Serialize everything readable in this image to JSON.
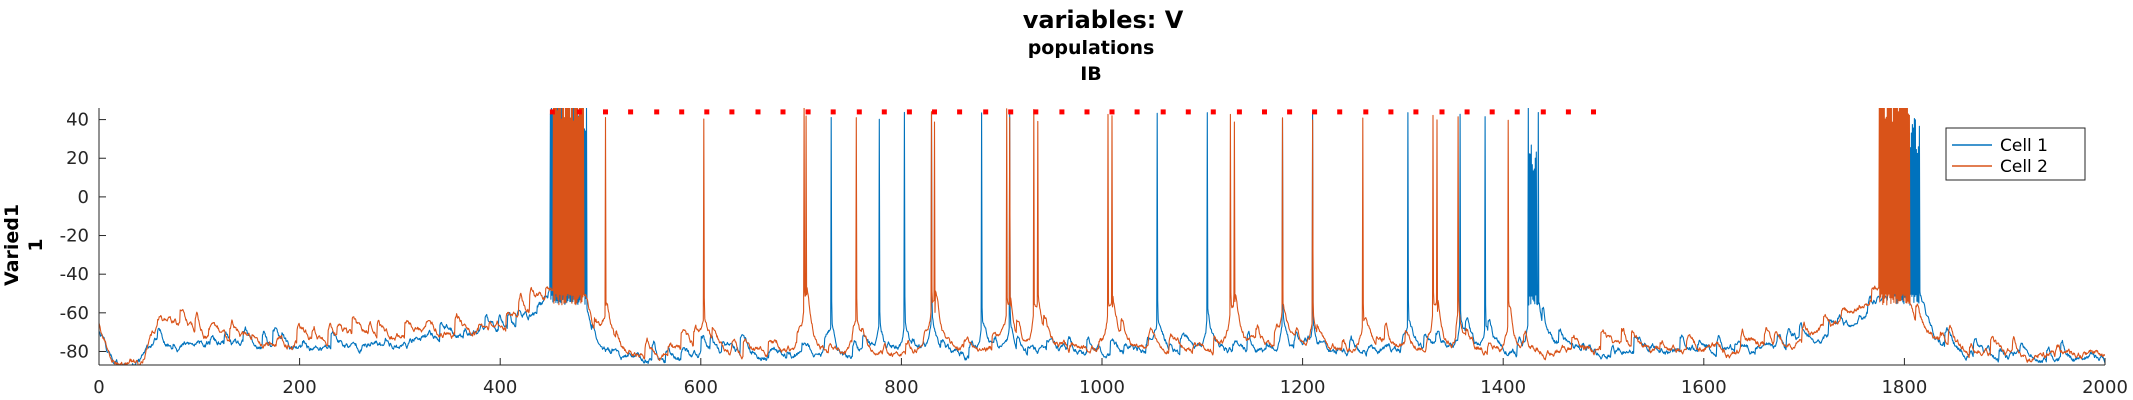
{
  "chart_data": {
    "type": "line",
    "title": "variables: V",
    "subtitle_lines": [
      "populations",
      "IB"
    ],
    "ylabel_lines": [
      "Varied1",
      "1"
    ],
    "xlabel": "",
    "xlim": [
      0,
      2000
    ],
    "ylim": [
      -87,
      46
    ],
    "xticks": [
      0,
      200,
      400,
      600,
      800,
      1000,
      1200,
      1400,
      1600,
      1800,
      2000
    ],
    "yticks": [
      -80,
      -60,
      -40,
      -20,
      0,
      20,
      40
    ],
    "grid": false,
    "legend_position": "top-right",
    "colors": {
      "cell1": "#0072BD",
      "cell2": "#D95319",
      "markers": "#FF0000",
      "axis": "#262626"
    },
    "series": [
      {
        "name": "Cell 1",
        "baseline": [
          [
            0,
            -70
          ],
          [
            10,
            -82
          ],
          [
            20,
            -87
          ],
          [
            40,
            -87
          ],
          [
            55,
            -75
          ],
          [
            100,
            -78
          ],
          [
            200,
            -80
          ],
          [
            300,
            -76
          ],
          [
            380,
            -70
          ],
          [
            420,
            -66
          ],
          [
            445,
            -57
          ],
          [
            450,
            -56
          ],
          [
            485,
            -56
          ],
          [
            495,
            -75
          ],
          [
            520,
            -85
          ],
          [
            600,
            -83
          ],
          [
            800,
            -82
          ],
          [
            1000,
            -81
          ],
          [
            1200,
            -80
          ],
          [
            1400,
            -79
          ],
          [
            1500,
            -80
          ],
          [
            1600,
            -81
          ],
          [
            1700,
            -77
          ],
          [
            1750,
            -65
          ],
          [
            1775,
            -53
          ],
          [
            1815,
            -53
          ],
          [
            1830,
            -75
          ],
          [
            1870,
            -82
          ],
          [
            1950,
            -83
          ],
          [
            2000,
            -84
          ]
        ],
        "bursts": [
          [
            450,
            486,
            22,
            30
          ],
          [
            1789,
            1815,
            12,
            30
          ],
          [
            1426,
            1433,
            4,
            30
          ]
        ],
        "spikes": [
          454,
          730,
          778,
          803,
          830,
          880,
          908,
          1055,
          1105,
          1180,
          1210,
          1305,
          1357,
          1382,
          1425,
          1430,
          1435
        ],
        "spike_peak": 44
      },
      {
        "name": "Cell 2",
        "baseline": [
          [
            0,
            -65
          ],
          [
            10,
            -78
          ],
          [
            20,
            -85
          ],
          [
            40,
            -86
          ],
          [
            55,
            -70
          ],
          [
            70,
            -64
          ],
          [
            100,
            -72
          ],
          [
            200,
            -75
          ],
          [
            300,
            -72
          ],
          [
            380,
            -68
          ],
          [
            420,
            -65
          ],
          [
            445,
            -54
          ],
          [
            450,
            -53
          ],
          [
            485,
            -53
          ],
          [
            495,
            -72
          ],
          [
            520,
            -82
          ],
          [
            600,
            -80
          ],
          [
            800,
            -80
          ],
          [
            1000,
            -79
          ],
          [
            1200,
            -78
          ],
          [
            1400,
            -79
          ],
          [
            1500,
            -79
          ],
          [
            1600,
            -80
          ],
          [
            1700,
            -75
          ],
          [
            1750,
            -60
          ],
          [
            1770,
            -52
          ],
          [
            1800,
            -52
          ],
          [
            1815,
            -70
          ],
          [
            1870,
            -82
          ],
          [
            1950,
            -81
          ],
          [
            2000,
            -82
          ]
        ],
        "bursts": [
          [
            453,
            483,
            30,
            30
          ],
          [
            1775,
            1805,
            26,
            40
          ]
        ],
        "spikes": [
          505,
          603,
          703,
          705,
          755,
          830,
          833,
          905,
          908,
          932,
          936,
          1006,
          1010,
          1128,
          1132,
          1180,
          1210,
          1260,
          1330,
          1334,
          1355,
          1405
        ],
        "spike_peak": 42
      }
    ],
    "marker_times": [
      452,
      479,
      505,
      530,
      556,
      581,
      606,
      631,
      657,
      682,
      707,
      732,
      758,
      783,
      808,
      833,
      858,
      884,
      909,
      934,
      960,
      985,
      1010,
      1035,
      1061,
      1086,
      1111,
      1137,
      1162,
      1187,
      1212,
      1237,
      1263,
      1288,
      1313,
      1339,
      1364,
      1389,
      1414,
      1440,
      1465,
      1490
    ],
    "marker_value": 44
  }
}
